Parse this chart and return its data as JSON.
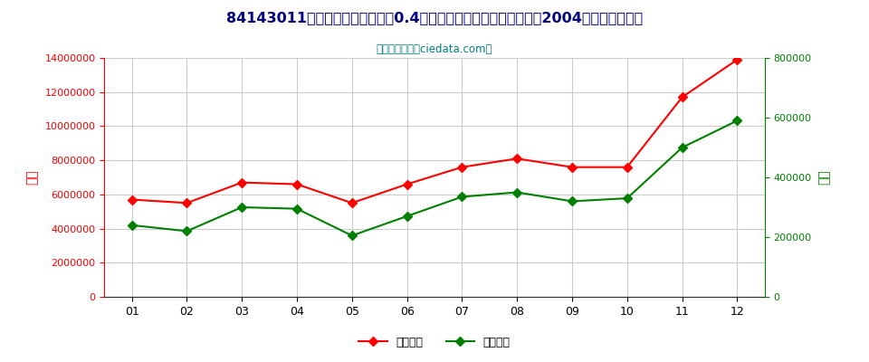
{
  "title": "84143011电动机额定功率不超过0.4千瓦的冷藏箱或冷冻箱用压缩机2004年出口月度走势",
  "subtitle": "进出口服务网（ciedata.com）",
  "months": [
    "01",
    "02",
    "03",
    "04",
    "05",
    "06",
    "07",
    "08",
    "09",
    "10",
    "11",
    "12"
  ],
  "export_usd": [
    5700000,
    5500000,
    6700000,
    6600000,
    5500000,
    6600000,
    7600000,
    8100000,
    7600000,
    7600000,
    11700000,
    13900000
  ],
  "export_qty": [
    240000,
    220000,
    300000,
    295000,
    205000,
    270000,
    335000,
    350000,
    320000,
    330000,
    500000,
    590000
  ],
  "left_ylabel": "金额",
  "right_ylabel": "数量",
  "left_ylim": [
    0,
    14000000
  ],
  "right_ylim": [
    0,
    800000
  ],
  "left_yticks": [
    0,
    2000000,
    4000000,
    6000000,
    8000000,
    10000000,
    12000000,
    14000000
  ],
  "right_yticks": [
    0,
    200000,
    400000,
    600000,
    800000
  ],
  "usd_color": "#FF0000",
  "qty_color": "#008000",
  "bg_color": "#FFFFFF",
  "plot_bg_color": "#FFFFFF",
  "grid_color": "#CCCCCC",
  "title_color": "#000080",
  "subtitle_color": "#008080",
  "left_tick_color": "#FF0000",
  "right_tick_color": "#008000",
  "legend_usd": "出口美元",
  "legend_qty": "出口数量"
}
